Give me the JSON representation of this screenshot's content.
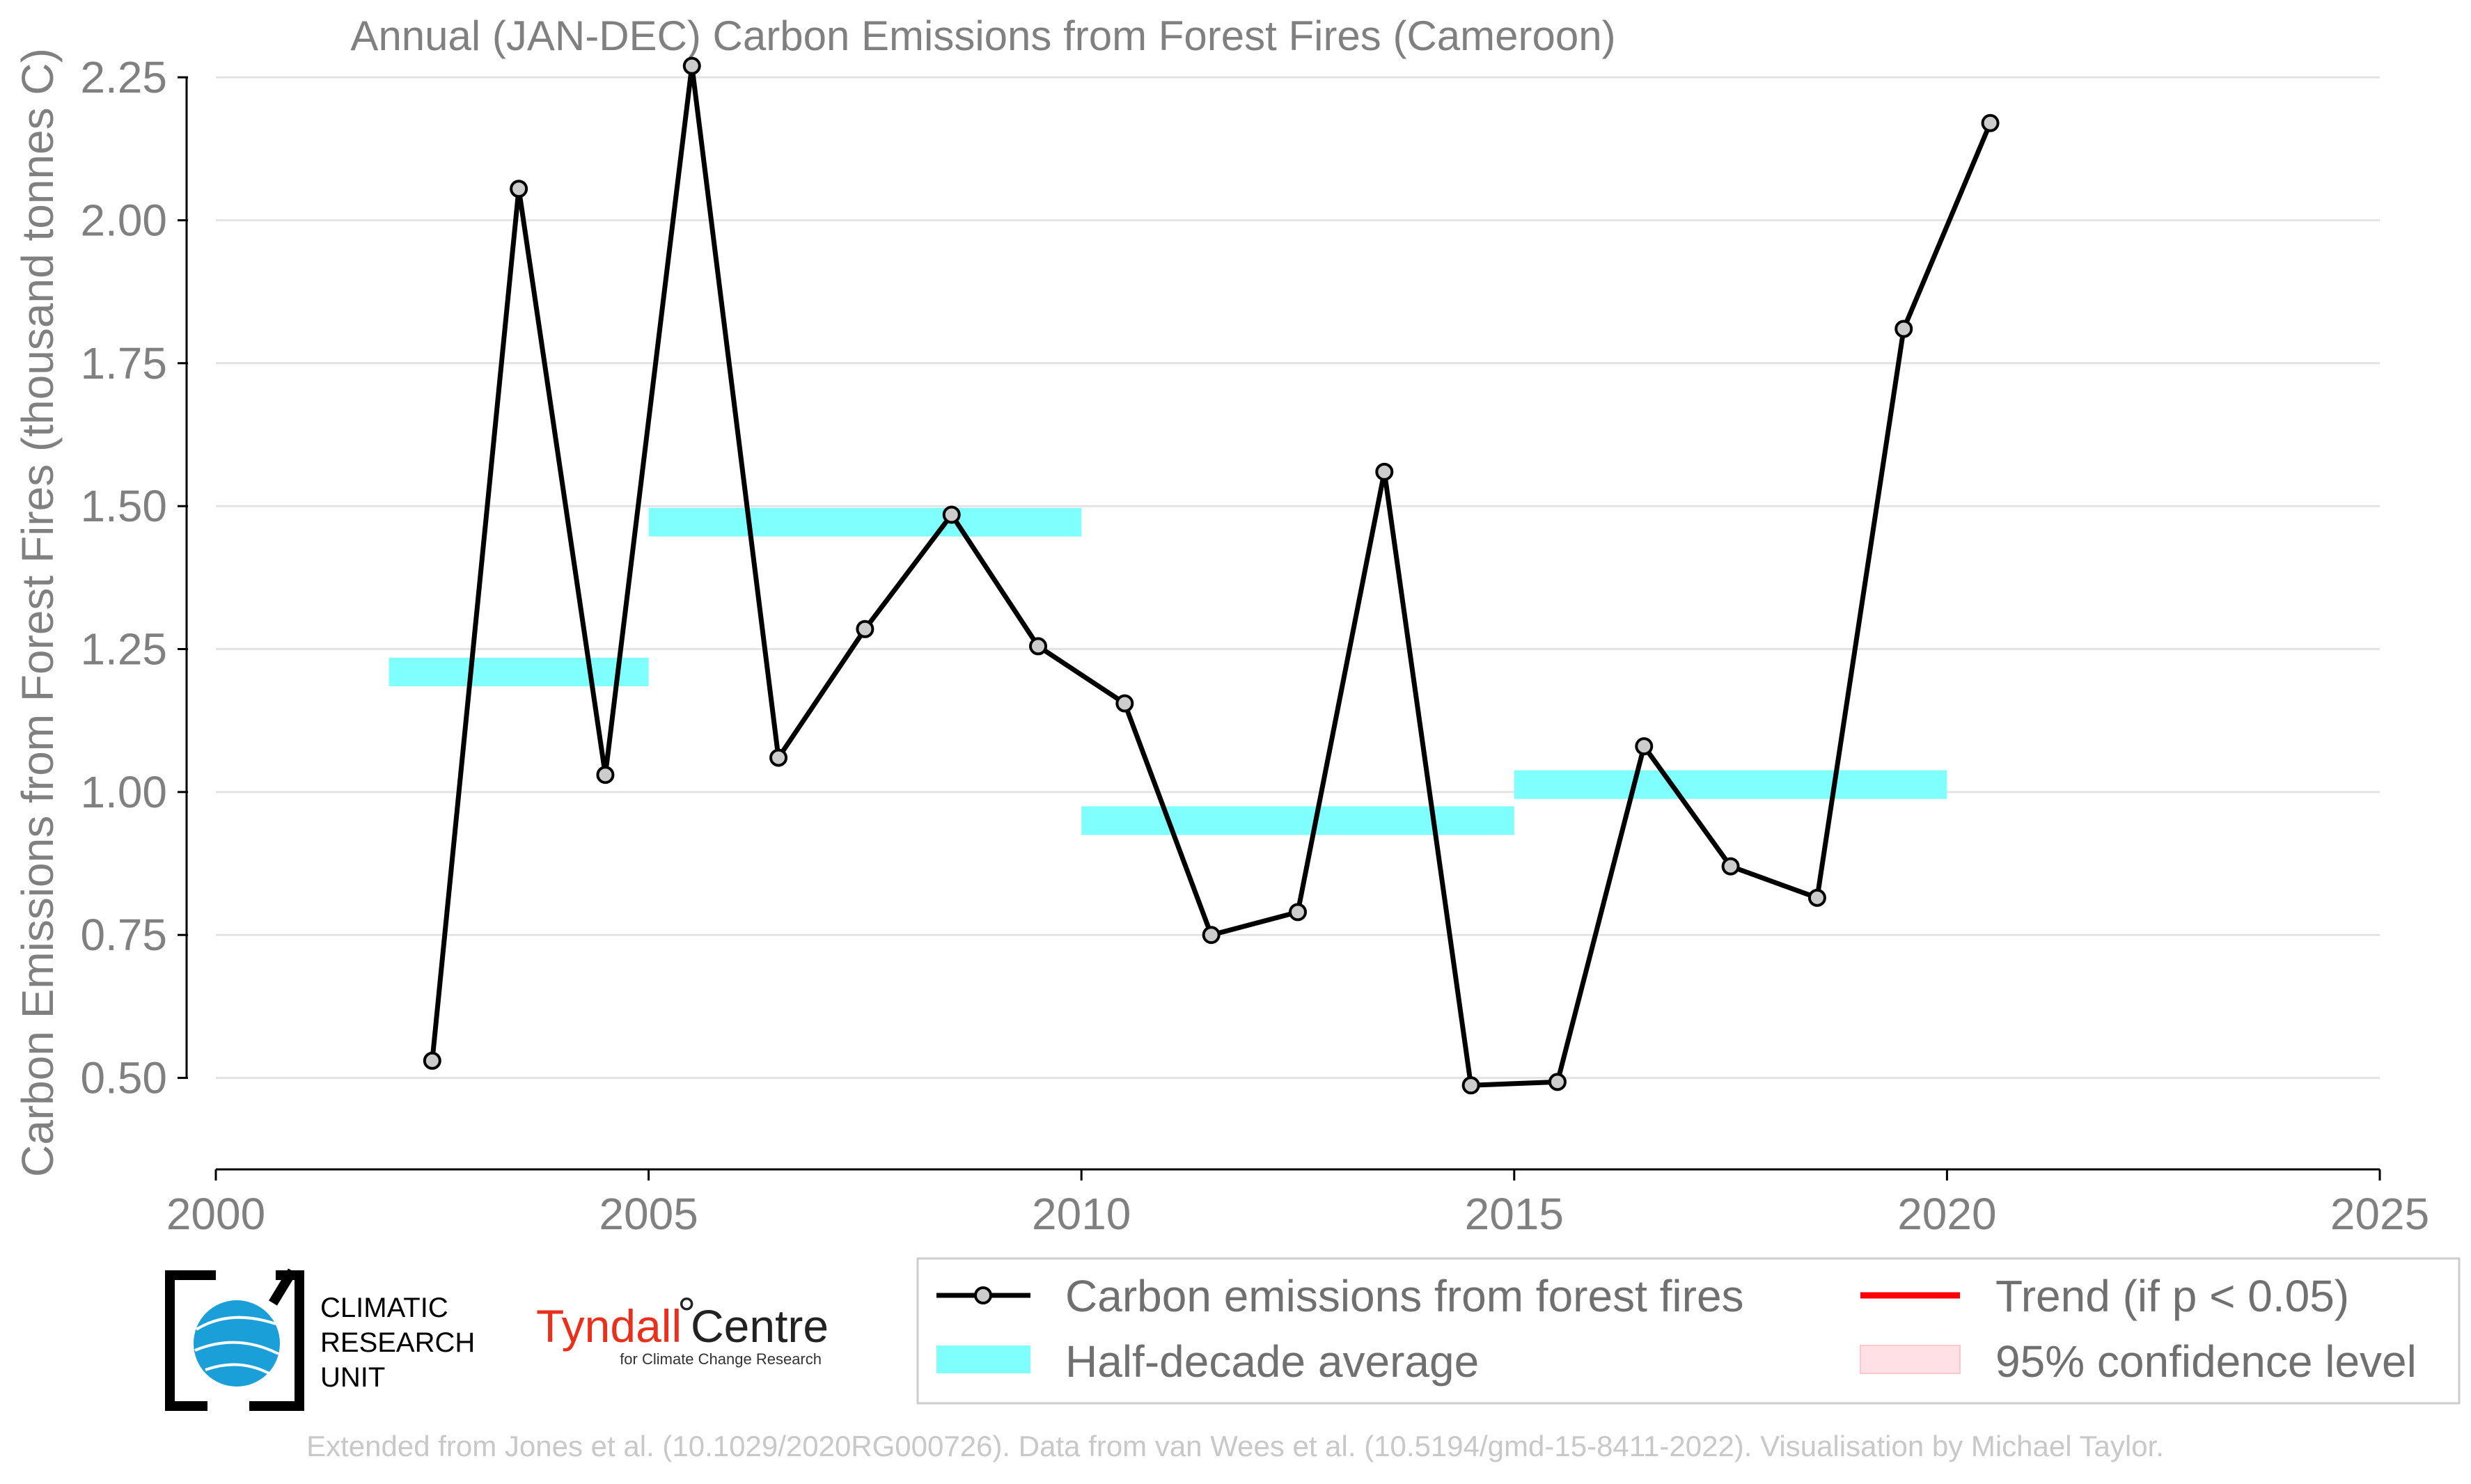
{
  "chart_data": {
    "type": "line",
    "title": "Annual (JAN-DEC) Carbon Emissions from Forest Fires (Cameroon)",
    "xlabel": "",
    "ylabel": "Carbon Emissions from Forest Fires (thousand tonnes C)",
    "xlim": [
      2000,
      2025
    ],
    "ylim": [
      0.34,
      2.3
    ],
    "xticks": [
      2000,
      2005,
      2010,
      2015,
      2020,
      2025
    ],
    "xtick_labels": [
      "2000",
      "2005",
      "2010",
      "2015",
      "2020",
      "2025"
    ],
    "yticks": [
      0.5,
      0.75,
      1.0,
      1.25,
      1.5,
      1.75,
      2.0,
      2.25
    ],
    "ytick_labels": [
      "0.50",
      "0.75",
      "1.00",
      "1.25",
      "1.50",
      "1.75",
      "2.00",
      "2.25"
    ],
    "grid": "horizontal",
    "series": [
      {
        "name": "Carbon emissions from forest fires",
        "color": "#000000",
        "marker_fill": "#cccccc",
        "x": [
          2002.5,
          2003.5,
          2004.5,
          2005.5,
          2006.5,
          2007.5,
          2008.5,
          2009.5,
          2010.5,
          2011.5,
          2012.5,
          2013.5,
          2014.5,
          2015.5,
          2016.5,
          2017.5,
          2018.5,
          2019.5,
          2020.5
        ],
        "y": [
          0.53,
          2.055,
          1.03,
          2.27,
          1.06,
          1.285,
          1.485,
          1.255,
          1.155,
          0.75,
          0.79,
          1.56,
          0.487,
          0.493,
          1.08,
          0.87,
          0.815,
          1.81,
          2.17
        ]
      }
    ],
    "half_decade_average": {
      "name": "Half-decade average",
      "color": "#80ffff",
      "segments": [
        {
          "x_start": 2002,
          "x_end": 2005,
          "y": 1.21
        },
        {
          "x_start": 2005,
          "x_end": 2010,
          "y": 1.472
        },
        {
          "x_start": 2010,
          "x_end": 2015,
          "y": 0.95
        },
        {
          "x_start": 2015,
          "x_end": 2020,
          "y": 1.013
        }
      ]
    },
    "legend": {
      "placement": "bottom-right",
      "entries": [
        {
          "label": "Carbon emissions from forest fires",
          "kind": "line-marker",
          "color": "#000000"
        },
        {
          "label": "Trend (if p < 0.05)",
          "kind": "line",
          "color": "#ff0000"
        },
        {
          "label": "Half-decade average",
          "kind": "patch",
          "color": "#80ffff"
        },
        {
          "label": "95% confidence level",
          "kind": "patch",
          "color": "#ffe0e4"
        }
      ]
    }
  },
  "logos": {
    "cru": {
      "lines": [
        "CLIMATIC",
        "RESEARCH",
        "UNIT"
      ],
      "color": "#1a9fd8"
    },
    "tyndall": {
      "name": "Tyndall",
      "degree": "°",
      "centre": "Centre",
      "subtitle": "for Climate Change Research"
    }
  },
  "footer": {
    "credit": "Extended from Jones et al. (10.1029/2020RG000726). Data from van Wees et al. (10.5194/gmd-15-8411-2022). Visualisation by Michael Taylor."
  }
}
